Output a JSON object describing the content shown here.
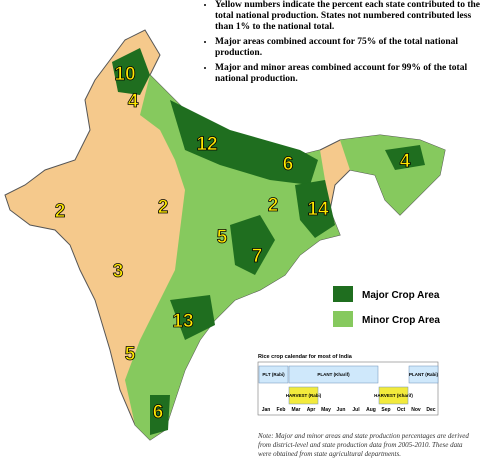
{
  "notes": [
    "Yellow numbers indicate the percent each state contributed to the total national production. States not numbered contributed less than 1% to the national total.",
    "Major areas combined account for 75% of the total national production.",
    "Major and minor areas combined account for 99% of the total national production."
  ],
  "state_percentages": [
    10,
    4,
    12,
    6,
    4,
    2,
    2,
    2,
    14,
    5,
    7,
    3,
    13,
    5,
    6
  ],
  "legend": [
    {
      "label": "Major Crop Area",
      "color": "#1f6e1f"
    },
    {
      "label": "Minor Crop Area",
      "color": "#86c95e"
    }
  ],
  "calendar": {
    "title": "Rice crop calendar for most of India",
    "planting": [
      "PLT (Rabi)",
      "PLANT (Kharif)",
      "PLANT (Rabi)"
    ],
    "harvest": [
      "HARVEST (Rabi)",
      "HARVEST (Kharif)"
    ],
    "months": [
      "Jan",
      "Feb",
      "Mar",
      "Apr",
      "May",
      "Jun",
      "Jul",
      "Aug",
      "Sep",
      "Oct",
      "Nov",
      "Dec"
    ]
  },
  "footnote": "Note: Major and minor areas and state production percentages are derived from district-level and state production data from 2005-2010. These data were obtained from state agricultural departments."
}
